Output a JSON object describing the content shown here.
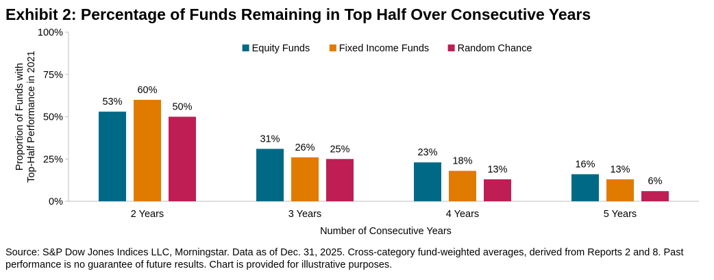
{
  "title": "Exhibit 2: Percentage of Funds Remaining in Top Half Over Consecutive Years",
  "source": "Source: S&P Dow Jones Indices LLC, Morningstar.  Data as of Dec. 31, 2025.  Cross-category fund-weighted averages, derived from Reports 2 and 8.  Past performance is no guarantee of future results.  Chart is provided for illustrative purposes.",
  "chart_data": {
    "type": "bar",
    "categories": [
      "2 Years",
      "3 Years",
      "4 Years",
      "5 Years"
    ],
    "series": [
      {
        "name": "Equity Funds",
        "color": "#006a86",
        "values": [
          53,
          31,
          23,
          16
        ],
        "labels": [
          "53%",
          "31%",
          "23%",
          "16%"
        ]
      },
      {
        "name": "Fixed Income Funds",
        "color": "#e07b00",
        "values": [
          60,
          26,
          18,
          13
        ],
        "labels": [
          "60%",
          "26%",
          "18%",
          "13%"
        ]
      },
      {
        "name": "Random Chance",
        "color": "#bf1e55",
        "values": [
          50,
          25,
          13,
          6
        ],
        "labels": [
          "50%",
          "25%",
          "13%",
          "6%"
        ]
      }
    ],
    "xlabel": "Number of Consecutive Years",
    "ylabel_lines": [
      "Proportion of Funds with",
      "Top-Half Performance in 2021"
    ],
    "ylim": [
      0,
      100
    ],
    "yticks": [
      0,
      25,
      50,
      75,
      100
    ],
    "ytick_labels": [
      "0%",
      "25%",
      "50%",
      "75%",
      "100%"
    ],
    "grid": false,
    "legend_position": "top-center"
  }
}
